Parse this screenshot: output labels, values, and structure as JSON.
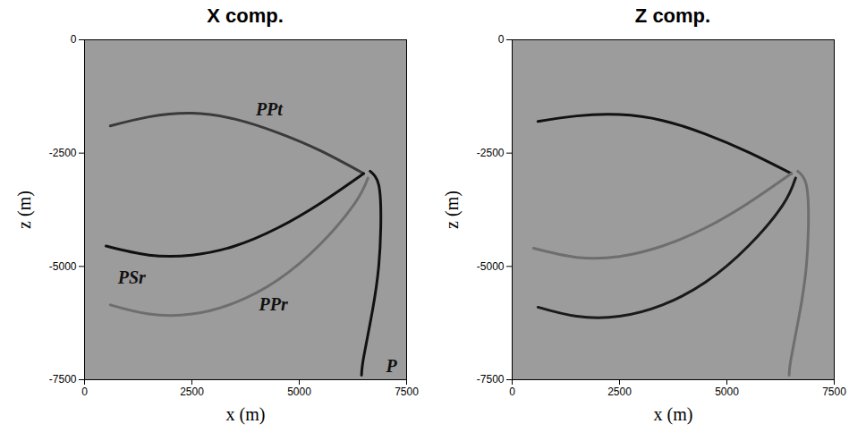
{
  "chart_data": [
    {
      "type": "line",
      "title": "X comp.",
      "x_label": "x (m)",
      "y_label": "z (m)",
      "xlim": [
        0,
        7500
      ],
      "ylim": [
        -7500,
        0
      ],
      "xticks": [
        0,
        2500,
        5000,
        7500
      ],
      "yticks": [
        0,
        -2500,
        -5000,
        -7500
      ],
      "series": [
        {
          "color": "#3a3a3a",
          "x": [
            600,
            1500,
            2500,
            3500,
            4500,
            5500,
            6500
          ],
          "values": [
            -1900,
            -1700,
            -1620,
            -1750,
            -2050,
            -2450,
            -2950
          ]
        },
        {
          "color": "#111111",
          "x": [
            500,
            1500,
            2500,
            3500,
            4500,
            5500,
            6500
          ],
          "values": [
            -4550,
            -4750,
            -4750,
            -4550,
            -4150,
            -3600,
            -2950
          ]
        },
        {
          "color": "#6e6e6e",
          "x": [
            600,
            1500,
            2500,
            3500,
            4500,
            5500,
            6300,
            6600
          ],
          "values": [
            -5850,
            -6050,
            -6050,
            -5800,
            -5300,
            -4500,
            -3600,
            -3050
          ]
        },
        {
          "color": "#111111",
          "x": [
            6650,
            6850,
            6900,
            6850,
            6700,
            6500,
            6450
          ],
          "values": [
            -2900,
            -3200,
            -4000,
            -5000,
            -6000,
            -7000,
            -7400
          ]
        }
      ],
      "annotations": [
        {
          "text": "PPt",
          "x": 4300,
          "y": -1550
        },
        {
          "text": "PSr",
          "x": 1100,
          "y": -5250
        },
        {
          "text": "PPr",
          "x": 4400,
          "y": -5850
        },
        {
          "text": "P",
          "x": 7150,
          "y": -7200
        }
      ]
    },
    {
      "type": "line",
      "title": "Z comp.",
      "x_label": "x (m)",
      "y_label": "z (m)",
      "xlim": [
        0,
        7500
      ],
      "ylim": [
        -7500,
        0
      ],
      "xticks": [
        0,
        2500,
        5000,
        7500
      ],
      "yticks": [
        0,
        -2500,
        -5000,
        -7500
      ],
      "series": [
        {
          "color": "#111111",
          "x": [
            600,
            1500,
            2500,
            3500,
            4500,
            5500,
            6500
          ],
          "values": [
            -1800,
            -1680,
            -1650,
            -1780,
            -2080,
            -2480,
            -2950
          ]
        },
        {
          "color": "#6e6e6e",
          "x": [
            500,
            1500,
            2500,
            3500,
            4500,
            5500,
            6500
          ],
          "values": [
            -4600,
            -4800,
            -4780,
            -4550,
            -4150,
            -3600,
            -2950
          ]
        },
        {
          "color": "#1a1a1a",
          "x": [
            600,
            1500,
            2500,
            3500,
            4500,
            5500,
            6300,
            6600
          ],
          "values": [
            -5900,
            -6100,
            -6100,
            -5850,
            -5350,
            -4550,
            -3650,
            -3050
          ]
        },
        {
          "color": "#6e6e6e",
          "x": [
            6650,
            6850,
            6900,
            6850,
            6700,
            6500,
            6450
          ],
          "values": [
            -2900,
            -3200,
            -4000,
            -5000,
            -6000,
            -7000,
            -7400
          ]
        }
      ],
      "annotations": []
    }
  ]
}
